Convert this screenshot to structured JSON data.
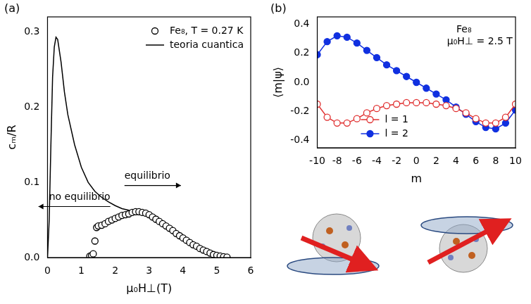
{
  "chart_data": [
    {
      "type": "scatter",
      "panel_label": "(a)",
      "x_label": "μ₀H⊥(T)",
      "y_label": "cₘ/R",
      "xlim": [
        0,
        6
      ],
      "xticks": [
        0,
        1,
        2,
        3,
        4,
        5,
        6
      ],
      "ylim": [
        0,
        0.32
      ],
      "yticks": [
        {
          "value": 0,
          "label": "0.0"
        },
        0.1,
        0.2,
        0.3
      ],
      "grid": false,
      "legend": "upper right",
      "series": [
        {
          "name": "Fe₈, T = 0.27 K",
          "type": "scatter",
          "color": "#000000",
          "marker": "open_circle",
          "line_style": "none",
          "x": [
            1.25,
            1.3,
            1.35,
            1.4,
            1.45,
            1.5,
            1.6,
            1.7,
            1.8,
            1.9,
            2.0,
            2.1,
            2.2,
            2.3,
            2.4,
            2.5,
            2.6,
            2.7,
            2.8,
            2.9,
            3.0,
            3.1,
            3.2,
            3.3,
            3.4,
            3.5,
            3.6,
            3.7,
            3.8,
            3.9,
            4.0,
            4.1,
            4.2,
            4.3,
            4.4,
            4.5,
            4.6,
            4.7,
            4.8,
            4.9,
            5.0,
            5.1,
            5.2,
            5.3
          ],
          "values": [
            0.002,
            0.003,
            0.005,
            0.022,
            0.04,
            0.042,
            0.043,
            0.045,
            0.048,
            0.05,
            0.052,
            0.054,
            0.056,
            0.057,
            0.058,
            0.06,
            0.061,
            0.061,
            0.06,
            0.059,
            0.057,
            0.054,
            0.051,
            0.048,
            0.045,
            0.042,
            0.039,
            0.036,
            0.032,
            0.029,
            0.026,
            0.023,
            0.02,
            0.017,
            0.015,
            0.012,
            0.01,
            0.008,
            0.006,
            0.004,
            0.003,
            0.002,
            0.001,
            0.0005
          ]
        },
        {
          "name": "teoria cuantica",
          "type": "line",
          "color": "#000000",
          "marker": "none",
          "line_style": "solid",
          "x": [
            0,
            0.05,
            0.1,
            0.15,
            0.2,
            0.25,
            0.3,
            0.4,
            0.5,
            0.6,
            0.8,
            1.0,
            1.2,
            1.4,
            1.6,
            1.8,
            2.0,
            2.2,
            2.4,
            2.6,
            2.8,
            3.0,
            3.2,
            3.5,
            4.0,
            4.5,
            5.0,
            5.3
          ],
          "values": [
            0,
            0.05,
            0.15,
            0.24,
            0.28,
            0.293,
            0.29,
            0.26,
            0.22,
            0.19,
            0.15,
            0.12,
            0.1,
            0.088,
            0.08,
            0.074,
            0.069,
            0.065,
            0.063,
            0.062,
            0.061,
            0.058,
            0.052,
            0.043,
            0.027,
            0.013,
            0.004,
            0.001
          ]
        }
      ],
      "annotations": [
        {
          "text": "equilibrio",
          "x": 2.95,
          "y": 0.108,
          "arrow": "right"
        },
        {
          "text": "no equilibrio",
          "x": 0.95,
          "y": 0.08,
          "arrow": "left"
        }
      ]
    },
    {
      "type": "line",
      "panel_label": "(b)",
      "x_label": "m",
      "y_label": "⟨m|ψ⟩",
      "xlim": [
        -10,
        10
      ],
      "xticks": [
        -10,
        -8,
        -6,
        -4,
        -2,
        0,
        2,
        4,
        6,
        8,
        10
      ],
      "ylim": [
        -0.45,
        0.45
      ],
      "yticks": [
        -0.4,
        -0.2,
        {
          "value": 0,
          "label": "0.0"
        },
        0.2,
        0.4
      ],
      "grid": false,
      "legend": "lower left",
      "series": [
        {
          "name": "l = 1",
          "type": "line",
          "color": "#e03030",
          "marker": "open_circle",
          "line_style": "solid",
          "x": [
            -10,
            -9,
            -8,
            -7,
            -6,
            -5,
            -4,
            -3,
            -2,
            -1,
            0,
            1,
            2,
            3,
            4,
            5,
            6,
            7,
            8,
            9,
            10
          ],
          "values": [
            -0.15,
            -0.24,
            -0.28,
            -0.28,
            -0.25,
            -0.21,
            -0.18,
            -0.16,
            -0.15,
            -0.14,
            -0.14,
            -0.14,
            -0.15,
            -0.16,
            -0.18,
            -0.21,
            -0.25,
            -0.28,
            -0.28,
            -0.24,
            -0.15
          ]
        },
        {
          "name": "l = 2",
          "type": "line",
          "color": "#1030e0",
          "marker": "circle",
          "line_style": "solid",
          "x": [
            -10,
            -9,
            -8,
            -7,
            -6,
            -5,
            -4,
            -3,
            -2,
            -1,
            0,
            1,
            2,
            3,
            4,
            5,
            6,
            7,
            8,
            9,
            10
          ],
          "values": [
            0.19,
            0.28,
            0.32,
            0.31,
            0.27,
            0.22,
            0.17,
            0.12,
            0.08,
            0.04,
            0,
            -0.04,
            -0.08,
            -0.12,
            -0.17,
            -0.22,
            -0.27,
            -0.31,
            -0.32,
            -0.28,
            -0.19
          ]
        }
      ],
      "annotations": [
        {
          "text": "Fe₈",
          "x": 4.8,
          "y": 0.36
        },
        {
          "text": "μ₀H⊥ = 2.5 T",
          "x": 6.4,
          "y": 0.28
        }
      ]
    }
  ]
}
